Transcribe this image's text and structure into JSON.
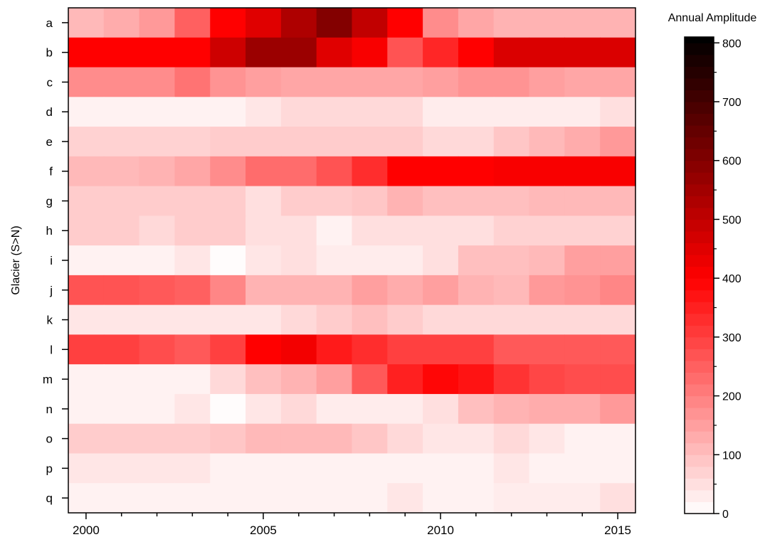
{
  "chart_data": {
    "type": "heatmap",
    "title": "",
    "ylabel": "Glacier (S>N)",
    "xlabel": "",
    "colorbar_title": "Annual Amplitude",
    "rows": [
      "a",
      "b",
      "c",
      "d",
      "e",
      "f",
      "g",
      "h",
      "i",
      "j",
      "k",
      "l",
      "m",
      "n",
      "o",
      "p",
      "q"
    ],
    "x": [
      2000,
      2001,
      2002,
      2003,
      2004,
      2005,
      2006,
      2007,
      2008,
      2009,
      2010,
      2011,
      2012,
      2013,
      2014,
      2015
    ],
    "xlim": [
      1999.5,
      2015.5
    ],
    "x_ticks": [
      2000,
      2005,
      2010,
      2015
    ],
    "colorbar_range": [
      0,
      810
    ],
    "colorbar_ticks": [
      0,
      100,
      200,
      300,
      400,
      500,
      600,
      700,
      800
    ],
    "colors": {
      "low": "#ffffff",
      "mid": "#ff0000",
      "high": "#000000",
      "mid_value": 400
    },
    "grid": false,
    "values": [
      [
        110,
        130,
        160,
        250,
        400,
        450,
        530,
        600,
        500,
        400,
        180,
        140,
        120,
        120,
        120,
        120
      ],
      [
        400,
        400,
        400,
        400,
        480,
        560,
        560,
        450,
        410,
        270,
        340,
        400,
        460,
        460,
        460,
        460
      ],
      [
        180,
        180,
        180,
        220,
        170,
        150,
        140,
        140,
        140,
        140,
        150,
        170,
        170,
        150,
        140,
        140
      ],
      [
        20,
        20,
        20,
        20,
        20,
        40,
        60,
        60,
        60,
        60,
        30,
        30,
        30,
        30,
        30,
        50
      ],
      [
        70,
        70,
        70,
        70,
        80,
        80,
        80,
        80,
        80,
        80,
        60,
        60,
        90,
        110,
        130,
        160
      ],
      [
        110,
        110,
        120,
        140,
        180,
        230,
        230,
        270,
        330,
        400,
        400,
        400,
        410,
        410,
        410,
        410
      ],
      [
        80,
        80,
        80,
        80,
        80,
        50,
        80,
        80,
        90,
        120,
        100,
        100,
        100,
        110,
        110,
        110
      ],
      [
        80,
        80,
        60,
        80,
        80,
        50,
        50,
        20,
        50,
        50,
        50,
        50,
        70,
        70,
        70,
        70
      ],
      [
        20,
        20,
        20,
        40,
        5,
        40,
        50,
        30,
        30,
        30,
        50,
        100,
        100,
        110,
        150,
        150
      ],
      [
        270,
        270,
        260,
        250,
        190,
        120,
        120,
        120,
        150,
        130,
        150,
        120,
        110,
        160,
        170,
        190
      ],
      [
        40,
        40,
        40,
        40,
        40,
        40,
        60,
        80,
        100,
        80,
        60,
        60,
        60,
        60,
        60,
        60
      ],
      [
        300,
        300,
        280,
        260,
        300,
        400,
        420,
        360,
        330,
        300,
        300,
        300,
        260,
        260,
        260,
        260
      ],
      [
        20,
        20,
        20,
        20,
        60,
        100,
        120,
        150,
        260,
        350,
        390,
        370,
        320,
        290,
        280,
        280
      ],
      [
        20,
        20,
        20,
        40,
        5,
        40,
        60,
        30,
        30,
        30,
        50,
        100,
        120,
        130,
        130,
        160
      ],
      [
        80,
        80,
        80,
        80,
        90,
        110,
        110,
        110,
        90,
        60,
        40,
        40,
        60,
        40,
        20,
        20
      ],
      [
        40,
        40,
        40,
        40,
        20,
        20,
        20,
        20,
        20,
        20,
        20,
        20,
        40,
        20,
        20,
        20
      ],
      [
        20,
        20,
        20,
        20,
        20,
        20,
        20,
        20,
        20,
        40,
        20,
        20,
        30,
        30,
        30,
        50
      ]
    ]
  }
}
